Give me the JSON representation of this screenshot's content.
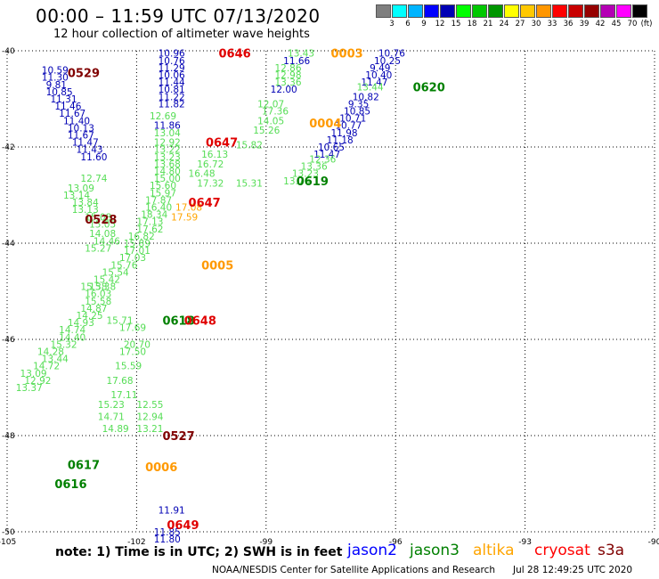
{
  "header": {
    "title": "00:00 – 11:59 UTC 07/13/2020",
    "subtitle": "12 hour collection of altimeter wave heights"
  },
  "color_scale": {
    "colors": [
      "#7f7f7f",
      "#00ffff",
      "#00b4ff",
      "#0000ff",
      "#0000b4",
      "#00ff00",
      "#00c800",
      "#009600",
      "#ffff00",
      "#ffc800",
      "#ff9600",
      "#ff0000",
      "#c80000",
      "#960000",
      "#b400b4",
      "#ff00ff",
      "#000000"
    ],
    "labels": [
      "3",
      "6",
      "9",
      "12",
      "15",
      "18",
      "21",
      "24",
      "27",
      "30",
      "33",
      "36",
      "39",
      "42",
      "45",
      "70"
    ],
    "unit": "(ft)"
  },
  "footer": {
    "note": "note:  1) Time is in UTC;  2) SWH is in feet",
    "credit": "NOAA/NESDIS Center for Satellite Applications and Research",
    "timestamp": "Jul 28 12:49:25 UTC 2020"
  },
  "legend": [
    {
      "name": "jason2",
      "color": "#0000ff"
    },
    {
      "name": "jason3",
      "color": "#008000"
    },
    {
      "name": "altika",
      "color": "#ffa500"
    },
    {
      "name": "cryosat",
      "color": "#ff0000"
    },
    {
      "name": "s3a",
      "color": "#800000"
    }
  ],
  "chart_data": {
    "type": "scatter",
    "title": "12 hour collection of altimeter wave heights",
    "xlabel": "",
    "ylabel": "",
    "xlim": [
      -105,
      -90
    ],
    "ylim": [
      -50,
      -40
    ],
    "x_ticks": [
      "-105",
      "-102",
      "-99",
      "-96",
      "-93",
      "-90"
    ],
    "y_ticks": [
      "-40",
      "-42",
      "-44",
      "-46",
      "-48",
      "-50"
    ],
    "grid": true,
    "series": [
      {
        "name": "jason2",
        "color": "#0000b4",
        "points": [
          {
            "x": -101.5,
            "y": -40.05,
            "label": "10.96"
          },
          {
            "x": -101.5,
            "y": -40.2,
            "label": "10.76"
          },
          {
            "x": -101.5,
            "y": -40.35,
            "label": "11.29"
          },
          {
            "x": -101.5,
            "y": -40.5,
            "label": "10.06"
          },
          {
            "x": -101.5,
            "y": -40.65,
            "label": "11.44"
          },
          {
            "x": -101.5,
            "y": -40.8,
            "label": "10.81"
          },
          {
            "x": -101.5,
            "y": -40.95,
            "label": "11.22"
          },
          {
            "x": -101.5,
            "y": -41.1,
            "label": "11.82"
          },
          {
            "x": -101.6,
            "y": -41.55,
            "label": "11.86"
          },
          {
            "x": -98.6,
            "y": -40.2,
            "label": "11.66"
          },
          {
            "x": -98.9,
            "y": -40.8,
            "label": "12.00"
          },
          {
            "x": -104.2,
            "y": -40.4,
            "label": "10.59"
          },
          {
            "x": -104.2,
            "y": -40.55,
            "label": "11.30"
          },
          {
            "x": -104.1,
            "y": -40.7,
            "label": "9.81"
          },
          {
            "x": -104.1,
            "y": -40.85,
            "label": "10.85"
          },
          {
            "x": -104.0,
            "y": -41.0,
            "label": "11.31"
          },
          {
            "x": -103.9,
            "y": -41.15,
            "label": "11.46"
          },
          {
            "x": -103.8,
            "y": -41.3,
            "label": "11.67"
          },
          {
            "x": -103.7,
            "y": -41.45,
            "label": "11.40"
          },
          {
            "x": -103.6,
            "y": -41.6,
            "label": "10.13"
          },
          {
            "x": -103.6,
            "y": -41.75,
            "label": "11.67"
          },
          {
            "x": -103.5,
            "y": -41.9,
            "label": "11.47"
          },
          {
            "x": -103.4,
            "y": -42.05,
            "label": "11.43"
          },
          {
            "x": -103.3,
            "y": -42.2,
            "label": "11.60"
          },
          {
            "x": -96.4,
            "y": -40.05,
            "label": "10.76"
          },
          {
            "x": -96.5,
            "y": -40.2,
            "label": "10.25"
          },
          {
            "x": -96.6,
            "y": -40.35,
            "label": "9.49"
          },
          {
            "x": -96.7,
            "y": -40.5,
            "label": "10.40"
          },
          {
            "x": -96.8,
            "y": -40.65,
            "label": "11.47"
          },
          {
            "x": -97.0,
            "y": -40.95,
            "label": "10.82"
          },
          {
            "x": -97.1,
            "y": -41.1,
            "label": "9.35"
          },
          {
            "x": -97.2,
            "y": -41.25,
            "label": "10.85"
          },
          {
            "x": -97.3,
            "y": -41.4,
            "label": "10.71"
          },
          {
            "x": -97.4,
            "y": -41.55,
            "label": "10.77"
          },
          {
            "x": -97.5,
            "y": -41.7,
            "label": "11.98"
          },
          {
            "x": -97.6,
            "y": -41.85,
            "label": "11.18"
          },
          {
            "x": -97.8,
            "y": -42.0,
            "label": "10.65"
          },
          {
            "x": -97.9,
            "y": -42.15,
            "label": "11.47"
          },
          {
            "x": -101.5,
            "y": -49.55,
            "label": "11.91"
          },
          {
            "x": -101.6,
            "y": -50.0,
            "label": "11.85"
          },
          {
            "x": -101.6,
            "y": -50.15,
            "label": "11.80"
          }
        ]
      },
      {
        "name": "jason3",
        "color": "#55dd55",
        "points": [
          {
            "x": -98.5,
            "y": -40.05,
            "label": "13.43"
          },
          {
            "x": -98.8,
            "y": -40.35,
            "label": "12.86"
          },
          {
            "x": -98.8,
            "y": -40.5,
            "label": "12.98"
          },
          {
            "x": -98.8,
            "y": -40.65,
            "label": "13.36"
          },
          {
            "x": -96.9,
            "y": -40.75,
            "label": "13.44"
          },
          {
            "x": -99.2,
            "y": -41.1,
            "label": "12.07"
          },
          {
            "x": -99.1,
            "y": -41.25,
            "label": "17.36"
          },
          {
            "x": -101.7,
            "y": -41.35,
            "label": "12.69"
          },
          {
            "x": -99.2,
            "y": -41.45,
            "label": "14.05"
          },
          {
            "x": -101.6,
            "y": -41.7,
            "label": "13.04"
          },
          {
            "x": -101.6,
            "y": -41.9,
            "label": "12.92"
          },
          {
            "x": -101.6,
            "y": -42.05,
            "label": "13.22"
          },
          {
            "x": -101.6,
            "y": -42.2,
            "label": "13.23"
          },
          {
            "x": -101.6,
            "y": -42.35,
            "label": "13.68"
          },
          {
            "x": -101.6,
            "y": -42.5,
            "label": "14.80"
          },
          {
            "x": -101.6,
            "y": -42.65,
            "label": "15.00"
          },
          {
            "x": -99.3,
            "y": -41.65,
            "label": "15.26"
          },
          {
            "x": -99.7,
            "y": -41.95,
            "label": "15.82"
          },
          {
            "x": -100.5,
            "y": -42.15,
            "label": "16.13"
          },
          {
            "x": -100.6,
            "y": -42.35,
            "label": "16.72"
          },
          {
            "x": -100.8,
            "y": -42.55,
            "label": "16.48"
          },
          {
            "x": -100.6,
            "y": -42.75,
            "label": "17.32"
          },
          {
            "x": -99.7,
            "y": -42.75,
            "label": "15.31"
          },
          {
            "x": -101.7,
            "y": -42.8,
            "label": "15.60"
          },
          {
            "x": -101.7,
            "y": -42.95,
            "label": "15.97"
          },
          {
            "x": -101.8,
            "y": -43.1,
            "label": "17.87"
          },
          {
            "x": -101.8,
            "y": -43.25,
            "label": "16.40"
          },
          {
            "x": -101.9,
            "y": -43.4,
            "label": "18.34"
          },
          {
            "x": -102.0,
            "y": -43.55,
            "label": "17.13"
          },
          {
            "x": -102.0,
            "y": -43.7,
            "label": "17.62"
          },
          {
            "x": -102.2,
            "y": -43.85,
            "label": "16.82"
          },
          {
            "x": -102.3,
            "y": -44.0,
            "label": "15.89"
          },
          {
            "x": -102.3,
            "y": -44.15,
            "label": "17.01"
          },
          {
            "x": -102.4,
            "y": -44.3,
            "label": "17.03"
          },
          {
            "x": -102.6,
            "y": -44.45,
            "label": "15.76"
          },
          {
            "x": -102.8,
            "y": -44.6,
            "label": "15.54"
          },
          {
            "x": -103.0,
            "y": -44.75,
            "label": "15.42"
          },
          {
            "x": -103.1,
            "y": -44.9,
            "label": "15.38"
          },
          {
            "x": -103.2,
            "y": -45.05,
            "label": "16.03"
          },
          {
            "x": -103.2,
            "y": -45.2,
            "label": "15.58"
          },
          {
            "x": -103.3,
            "y": -45.35,
            "label": "14.87"
          },
          {
            "x": -103.4,
            "y": -45.5,
            "label": "14.25"
          },
          {
            "x": -103.6,
            "y": -45.65,
            "label": "14.93"
          },
          {
            "x": -103.8,
            "y": -45.8,
            "label": "14.74"
          },
          {
            "x": -103.8,
            "y": -45.95,
            "label": "14.40"
          },
          {
            "x": -104.0,
            "y": -46.1,
            "label": "15.32"
          },
          {
            "x": -104.3,
            "y": -46.25,
            "label": "14.28"
          },
          {
            "x": -104.2,
            "y": -46.4,
            "label": "13.44"
          },
          {
            "x": -104.4,
            "y": -46.55,
            "label": "14.72"
          },
          {
            "x": -104.7,
            "y": -46.7,
            "label": "13.09"
          },
          {
            "x": -104.6,
            "y": -46.85,
            "label": "12.92"
          },
          {
            "x": -104.8,
            "y": -47.0,
            "label": "13.37"
          },
          {
            "x": -103.3,
            "y": -44.9,
            "label": "15.38"
          },
          {
            "x": -103.2,
            "y": -44.1,
            "label": "15.27"
          },
          {
            "x": -103.0,
            "y": -43.95,
            "label": "14.46"
          },
          {
            "x": -103.1,
            "y": -43.8,
            "label": "14.08"
          },
          {
            "x": -103.1,
            "y": -43.6,
            "label": "15.05"
          },
          {
            "x": -103.2,
            "y": -43.45,
            "label": "15.08"
          },
          {
            "x": -103.5,
            "y": -43.3,
            "label": "13.13"
          },
          {
            "x": -103.5,
            "y": -43.15,
            "label": "13.84"
          },
          {
            "x": -103.7,
            "y": -43.0,
            "label": "13.14"
          },
          {
            "x": -103.6,
            "y": -42.85,
            "label": "13.09"
          },
          {
            "x": -103.3,
            "y": -42.65,
            "label": "12.74"
          },
          {
            "x": -102.7,
            "y": -45.6,
            "label": "15.71"
          },
          {
            "x": -102.4,
            "y": -45.75,
            "label": "17.69"
          },
          {
            "x": -102.3,
            "y": -46.1,
            "label": "20.70"
          },
          {
            "x": -102.4,
            "y": -46.25,
            "label": "17.50"
          },
          {
            "x": -102.5,
            "y": -46.55,
            "label": "15.59"
          },
          {
            "x": -102.7,
            "y": -46.85,
            "label": "17.68"
          },
          {
            "x": -102.6,
            "y": -47.15,
            "label": "17.11"
          },
          {
            "x": -102.9,
            "y": -47.35,
            "label": "15.23"
          },
          {
            "x": -102.9,
            "y": -47.6,
            "label": "14.71"
          },
          {
            "x": -102.8,
            "y": -47.85,
            "label": "14.89"
          },
          {
            "x": -102.0,
            "y": -47.35,
            "label": "12.55"
          },
          {
            "x": -102.0,
            "y": -47.6,
            "label": "12.94"
          },
          {
            "x": -102.0,
            "y": -47.85,
            "label": "13.21"
          },
          {
            "x": -98.0,
            "y": -42.25,
            "label": "12.36"
          },
          {
            "x": -98.2,
            "y": -42.4,
            "label": "13.36"
          },
          {
            "x": -98.4,
            "y": -42.55,
            "label": "13.23"
          },
          {
            "x": -98.6,
            "y": -42.7,
            "label": "13.76"
          }
        ]
      },
      {
        "name": "altika",
        "color": "#ffa500",
        "points": [
          {
            "x": -101.1,
            "y": -43.25,
            "label": "17.08"
          },
          {
            "x": -101.2,
            "y": -43.45,
            "label": "17.59"
          }
        ]
      },
      {
        "name": "cryosat",
        "color": "#ff0000",
        "points": []
      },
      {
        "name": "s3a",
        "color": "#800000",
        "points": []
      }
    ],
    "pass_labels": [
      {
        "text": "0646",
        "color": "#e00000",
        "x": -100.1,
        "y": -40.05
      },
      {
        "text": "0003",
        "color": "#ff9900",
        "x": -97.5,
        "y": -40.05
      },
      {
        "text": "0529",
        "color": "#800000",
        "x": -103.6,
        "y": -40.45
      },
      {
        "text": "0620",
        "color": "#008000",
        "x": -95.6,
        "y": -40.75
      },
      {
        "text": "0004",
        "color": "#ff9900",
        "x": -98.0,
        "y": -41.5
      },
      {
        "text": "0647",
        "color": "#e00000",
        "x": -100.4,
        "y": -41.9
      },
      {
        "text": "0619",
        "color": "#008000",
        "x": -98.3,
        "y": -42.7
      },
      {
        "text": "0647",
        "color": "#e00000",
        "x": -100.8,
        "y": -43.15
      },
      {
        "text": "0528",
        "color": "#800000",
        "x": -103.2,
        "y": -43.5
      },
      {
        "text": "0005",
        "color": "#ff9900",
        "x": -100.5,
        "y": -44.45
      },
      {
        "text": "0618",
        "color": "#008000",
        "x": -101.4,
        "y": -45.6
      },
      {
        "text": "0648",
        "color": "#e00000",
        "x": -100.9,
        "y": -45.6
      },
      {
        "text": "0527",
        "color": "#800000",
        "x": -101.4,
        "y": -48.0
      },
      {
        "text": "0617",
        "color": "#008000",
        "x": -103.6,
        "y": -48.6
      },
      {
        "text": "0616",
        "color": "#008000",
        "x": -103.9,
        "y": -49.0
      },
      {
        "text": "0006",
        "color": "#ff9900",
        "x": -101.8,
        "y": -48.65
      },
      {
        "text": "0649",
        "color": "#e00000",
        "x": -101.3,
        "y": -49.85
      }
    ]
  }
}
